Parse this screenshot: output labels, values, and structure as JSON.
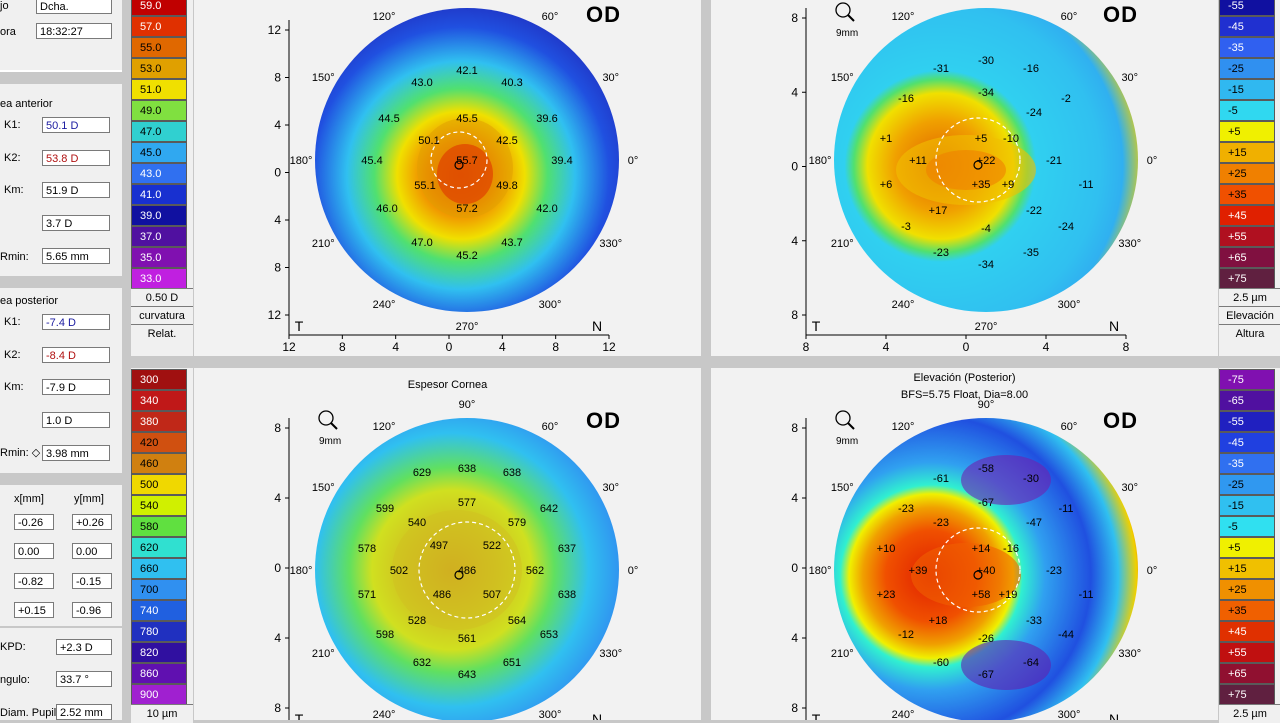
{
  "patient": {
    "ojo_label": "jo",
    "ojo_value": "Dcha.",
    "hora_label": "ora",
    "hora_value": "18:32:27"
  },
  "anterior": {
    "title": "ea anterior",
    "k1_label": "K1:",
    "k1": "50.1 D",
    "k2_label": "K2:",
    "k2": "53.8 D",
    "km_label": "Km:",
    "km": "51.9 D",
    "astig": "3.7 D",
    "rmin_label": "Rmin:",
    "rmin": "5.65 mm"
  },
  "posterior": {
    "title": "ea posterior",
    "k1_label": "K1:",
    "k1": "-7.4 D",
    "k2_label": "K2:",
    "k2": "-8.4 D",
    "km_label": "Km:",
    "km": "-7.9 D",
    "astig": "1.0 D",
    "rmin_label": "Rmin: ◇",
    "rmin": "3.98 mm"
  },
  "coords": {
    "x_header": "x[mm]",
    "y_header": "y[mm]",
    "rows": [
      [
        "-0.26",
        "+0.26"
      ],
      [
        "0.00",
        "0.00"
      ],
      [
        "-0.82",
        "-0.15"
      ],
      [
        "+0.15",
        "-0.96"
      ]
    ]
  },
  "kpd": {
    "label": "KPD:",
    "value": "+2.3 D"
  },
  "angulo": {
    "label": "ngulo:",
    "value": "33.7 °"
  },
  "pupil": {
    "label": "Diam. Pupil:",
    "value": "2.52 mm"
  },
  "eye": "OD",
  "curv_scale": {
    "values": [
      "59.0",
      "57.0",
      "55.0",
      "53.0",
      "51.0",
      "49.0",
      "47.0",
      "45.0",
      "43.0",
      "41.0",
      "39.0",
      "37.0",
      "35.0",
      "33.0"
    ],
    "colors": [
      "#c00000",
      "#e03000",
      "#e06800",
      "#e0a000",
      "#f0e000",
      "#80e040",
      "#30d0d0",
      "#30a8f0",
      "#3070f0",
      "#1830d0",
      "#1010a0",
      "#5010a0",
      "#8010b0",
      "#c020e0"
    ],
    "step": "0.50 D",
    "label1": "curvatura",
    "label2": "Relat."
  },
  "elev_scale": {
    "values": [
      "-55",
      "-45",
      "-35",
      "-25",
      "-15",
      "-5",
      "+5",
      "+15",
      "+25",
      "+35",
      "+45",
      "+55",
      "+65",
      "+75"
    ],
    "colors": [
      "#1010a0",
      "#2030d0",
      "#3060f0",
      "#3090f0",
      "#30b8f0",
      "#30d8f0",
      "#f0f000",
      "#f0b000",
      "#f08000",
      "#f05000",
      "#e02000",
      "#b01020",
      "#801040",
      "#602040"
    ],
    "step": "2.5 µm",
    "label1": "Elevación",
    "label2": "Altura"
  },
  "thick_scale": {
    "values": [
      "300",
      "340",
      "380",
      "420",
      "460",
      "500",
      "540",
      "580",
      "620",
      "660",
      "700",
      "740",
      "780",
      "820",
      "860",
      "900"
    ],
    "colors": [
      "#a01010",
      "#c01818",
      "#c02818",
      "#d05010",
      "#d08010",
      "#f0d800",
      "#d0f000",
      "#60e040",
      "#30e0d0",
      "#30c0f0",
      "#3090f0",
      "#2060e0",
      "#2030c0",
      "#3010a0",
      "#6010b0",
      "#a020d0"
    ],
    "step": "10 µm"
  },
  "elev_post_scale": {
    "values": [
      "-75",
      "-65",
      "-55",
      "-45",
      "-35",
      "-25",
      "-15",
      "-5",
      "+5",
      "+15",
      "+25",
      "+35",
      "+45",
      "+55",
      "+65",
      "+75"
    ],
    "colors": [
      "#8010b0",
      "#5010a0",
      "#2020c0",
      "#2040e0",
      "#3070f0",
      "#3098f0",
      "#30c0f0",
      "#30e0f0",
      "#f0f000",
      "#f0c000",
      "#f09000",
      "#f06000",
      "#e03000",
      "#c01010",
      "#901030",
      "#602040"
    ],
    "step": "2.5 µm"
  },
  "maps": {
    "tl": {
      "axis_x": [
        "12",
        "8",
        "4",
        "0",
        "4",
        "8",
        "12"
      ],
      "axis_y": [
        "12",
        "8",
        "4",
        "0",
        "4",
        "8",
        "12"
      ],
      "labels": [
        [
          "42.1",
          0,
          -90
        ],
        [
          "40.3",
          45,
          -78
        ],
        [
          "43.0",
          -45,
          -78
        ],
        [
          "44.5",
          -78,
          -42
        ],
        [
          "45.5",
          0,
          -42
        ],
        [
          "39.6",
          80,
          -42
        ],
        [
          "50.1",
          -38,
          -20
        ],
        [
          "42.5",
          40,
          -20
        ],
        [
          "55.7",
          0,
          0
        ],
        [
          "45.4",
          -95,
          0
        ],
        [
          "39.4",
          95,
          0
        ],
        [
          "55.1",
          -42,
          25
        ],
        [
          "49.8",
          40,
          25
        ],
        [
          "46.0",
          -80,
          48
        ],
        [
          "57.2",
          0,
          48
        ],
        [
          "42.0",
          80,
          48
        ],
        [
          "47.0",
          -45,
          82
        ],
        [
          "43.7",
          45,
          82
        ],
        [
          "45.2",
          0,
          95
        ]
      ]
    },
    "tr": {
      "axis_x": [
        "8",
        "4",
        "0",
        "4",
        "8"
      ],
      "axis_y": [
        "8",
        "4",
        "0",
        "4",
        "8"
      ],
      "labels": [
        [
          "-30",
          0,
          -100
        ],
        [
          "-31",
          -45,
          -92
        ],
        [
          "-16",
          45,
          -92
        ],
        [
          "-34",
          0,
          -68
        ],
        [
          "-16",
          -80,
          -62
        ],
        [
          "-2",
          80,
          -62
        ],
        [
          "-24",
          48,
          -48
        ],
        [
          "+5",
          -5,
          -22
        ],
        [
          "-10",
          25,
          -22
        ],
        [
          "+1",
          -100,
          -22
        ],
        [
          "+11",
          -68,
          0
        ],
        [
          "+22",
          0,
          0
        ],
        [
          "-21",
          68,
          0
        ],
        [
          "+6",
          -100,
          24
        ],
        [
          "+35",
          -5,
          24
        ],
        [
          "+9",
          22,
          24
        ],
        [
          "-11",
          100,
          24
        ],
        [
          "+17",
          -48,
          50
        ],
        [
          "-22",
          48,
          50
        ],
        [
          "-3",
          -80,
          66
        ],
        [
          "-4",
          0,
          68
        ],
        [
          "-24",
          80,
          66
        ],
        [
          "-23",
          -45,
          92
        ],
        [
          "-34",
          0,
          104
        ],
        [
          "-35",
          45,
          92
        ]
      ]
    },
    "bl": {
      "axis_x": [
        "8",
        "4",
        "0",
        "4",
        "8"
      ],
      "axis_y": [
        "8",
        "4",
        "0",
        "4",
        "8"
      ],
      "labels": [
        [
          "629",
          -45,
          -98
        ],
        [
          "638",
          0,
          -102
        ],
        [
          "638",
          45,
          -98
        ],
        [
          "599",
          -82,
          -62
        ],
        [
          "577",
          0,
          -68
        ],
        [
          "642",
          82,
          -62
        ],
        [
          "540",
          -50,
          -48
        ],
        [
          "579",
          50,
          -48
        ],
        [
          "497",
          -28,
          -25
        ],
        [
          "522",
          25,
          -25
        ],
        [
          "578",
          -100,
          -22
        ],
        [
          "637",
          100,
          -22
        ],
        [
          "502",
          -68,
          0
        ],
        [
          "486",
          0,
          0
        ],
        [
          "562",
          68,
          0
        ],
        [
          "571",
          -100,
          24
        ],
        [
          "486",
          -25,
          24
        ],
        [
          "507",
          25,
          24
        ],
        [
          "638",
          100,
          24
        ],
        [
          "528",
          -50,
          50
        ],
        [
          "564",
          50,
          50
        ],
        [
          "598",
          -82,
          64
        ],
        [
          "561",
          0,
          68
        ],
        [
          "653",
          82,
          64
        ],
        [
          "632",
          -45,
          92
        ],
        [
          "651",
          45,
          92
        ],
        [
          "643",
          0,
          104
        ]
      ]
    },
    "br": {
      "axis_x": [
        "8",
        "4",
        "0",
        "4",
        "8"
      ],
      "axis_y": [
        "8",
        "4",
        "0",
        "4",
        "8"
      ],
      "labels": [
        [
          "-58",
          0,
          -102
        ],
        [
          "-61",
          -45,
          -92
        ],
        [
          "-30",
          45,
          -92
        ],
        [
          "-67",
          0,
          -68
        ],
        [
          "-23",
          -80,
          -62
        ],
        [
          "-11",
          80,
          -62
        ],
        [
          "-23",
          -45,
          -48
        ],
        [
          "-47",
          48,
          -48
        ],
        [
          "+14",
          -5,
          -22
        ],
        [
          "-16",
          25,
          -22
        ],
        [
          "+10",
          -100,
          -22
        ],
        [
          "-23",
          68,
          0
        ],
        [
          "+39",
          -68,
          0
        ],
        [
          "+40",
          0,
          0
        ],
        [
          "+23",
          -100,
          24
        ],
        [
          "+58",
          -5,
          24
        ],
        [
          "+19",
          22,
          24
        ],
        [
          "-11",
          100,
          24
        ],
        [
          "+18",
          -48,
          50
        ],
        [
          "-33",
          48,
          50
        ],
        [
          "-12",
          -80,
          64
        ],
        [
          "-26",
          0,
          68
        ],
        [
          "-44",
          80,
          64
        ],
        [
          "-60",
          -45,
          92
        ],
        [
          "-67",
          0,
          104
        ],
        [
          "-64",
          45,
          92
        ]
      ]
    },
    "tl_title": "",
    "bl_title": "Espesor Cornea",
    "br_title1": "Elevación (Posterior)",
    "br_title2": "BFS=5.75 Float, Dia=8.00",
    "zoom_label": "9mm",
    "dirs": {
      "t": "T",
      "n": "N"
    },
    "degrees": [
      "90°",
      "60°",
      "30°",
      "0°",
      "330°",
      "300°",
      "270°",
      "240°",
      "210°",
      "180°",
      "150°",
      "120°"
    ]
  }
}
